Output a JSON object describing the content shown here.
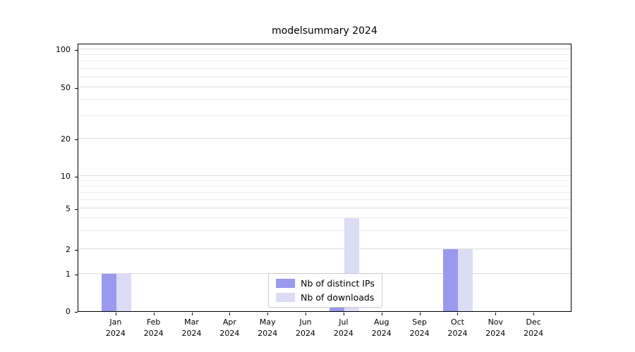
{
  "chart_data": {
    "type": "bar",
    "title": "modelsummary 2024",
    "xlabel": "",
    "ylabel": "",
    "yscale": "symlog",
    "ylim": [
      0,
      110
    ],
    "yticks": [
      0,
      1,
      2,
      5,
      10,
      20,
      50,
      100
    ],
    "y_minor_gridlines": [
      3,
      4,
      6,
      7,
      8,
      9,
      30,
      40,
      60,
      70,
      80,
      90
    ],
    "grid": "horizontal",
    "legend_position": "lower center",
    "categories": [
      {
        "month": "Jan",
        "year": "2024"
      },
      {
        "month": "Feb",
        "year": "2024"
      },
      {
        "month": "Mar",
        "year": "2024"
      },
      {
        "month": "Apr",
        "year": "2024"
      },
      {
        "month": "May",
        "year": "2024"
      },
      {
        "month": "Jun",
        "year": "2024"
      },
      {
        "month": "Jul",
        "year": "2024"
      },
      {
        "month": "Aug",
        "year": "2024"
      },
      {
        "month": "Sep",
        "year": "2024"
      },
      {
        "month": "Oct",
        "year": "2024"
      },
      {
        "month": "Nov",
        "year": "2024"
      },
      {
        "month": "Dec",
        "year": "2024"
      }
    ],
    "series": [
      {
        "name": "Nb of distinct IPs",
        "color": "#9999ee",
        "values": [
          1,
          0,
          0,
          0,
          0,
          0,
          1,
          0,
          0,
          2,
          0,
          0
        ]
      },
      {
        "name": "Nb of downloads",
        "color": "#dcdcf7",
        "values": [
          1,
          0,
          0,
          0,
          0,
          0,
          4,
          0,
          0,
          2,
          0,
          0
        ]
      }
    ]
  }
}
